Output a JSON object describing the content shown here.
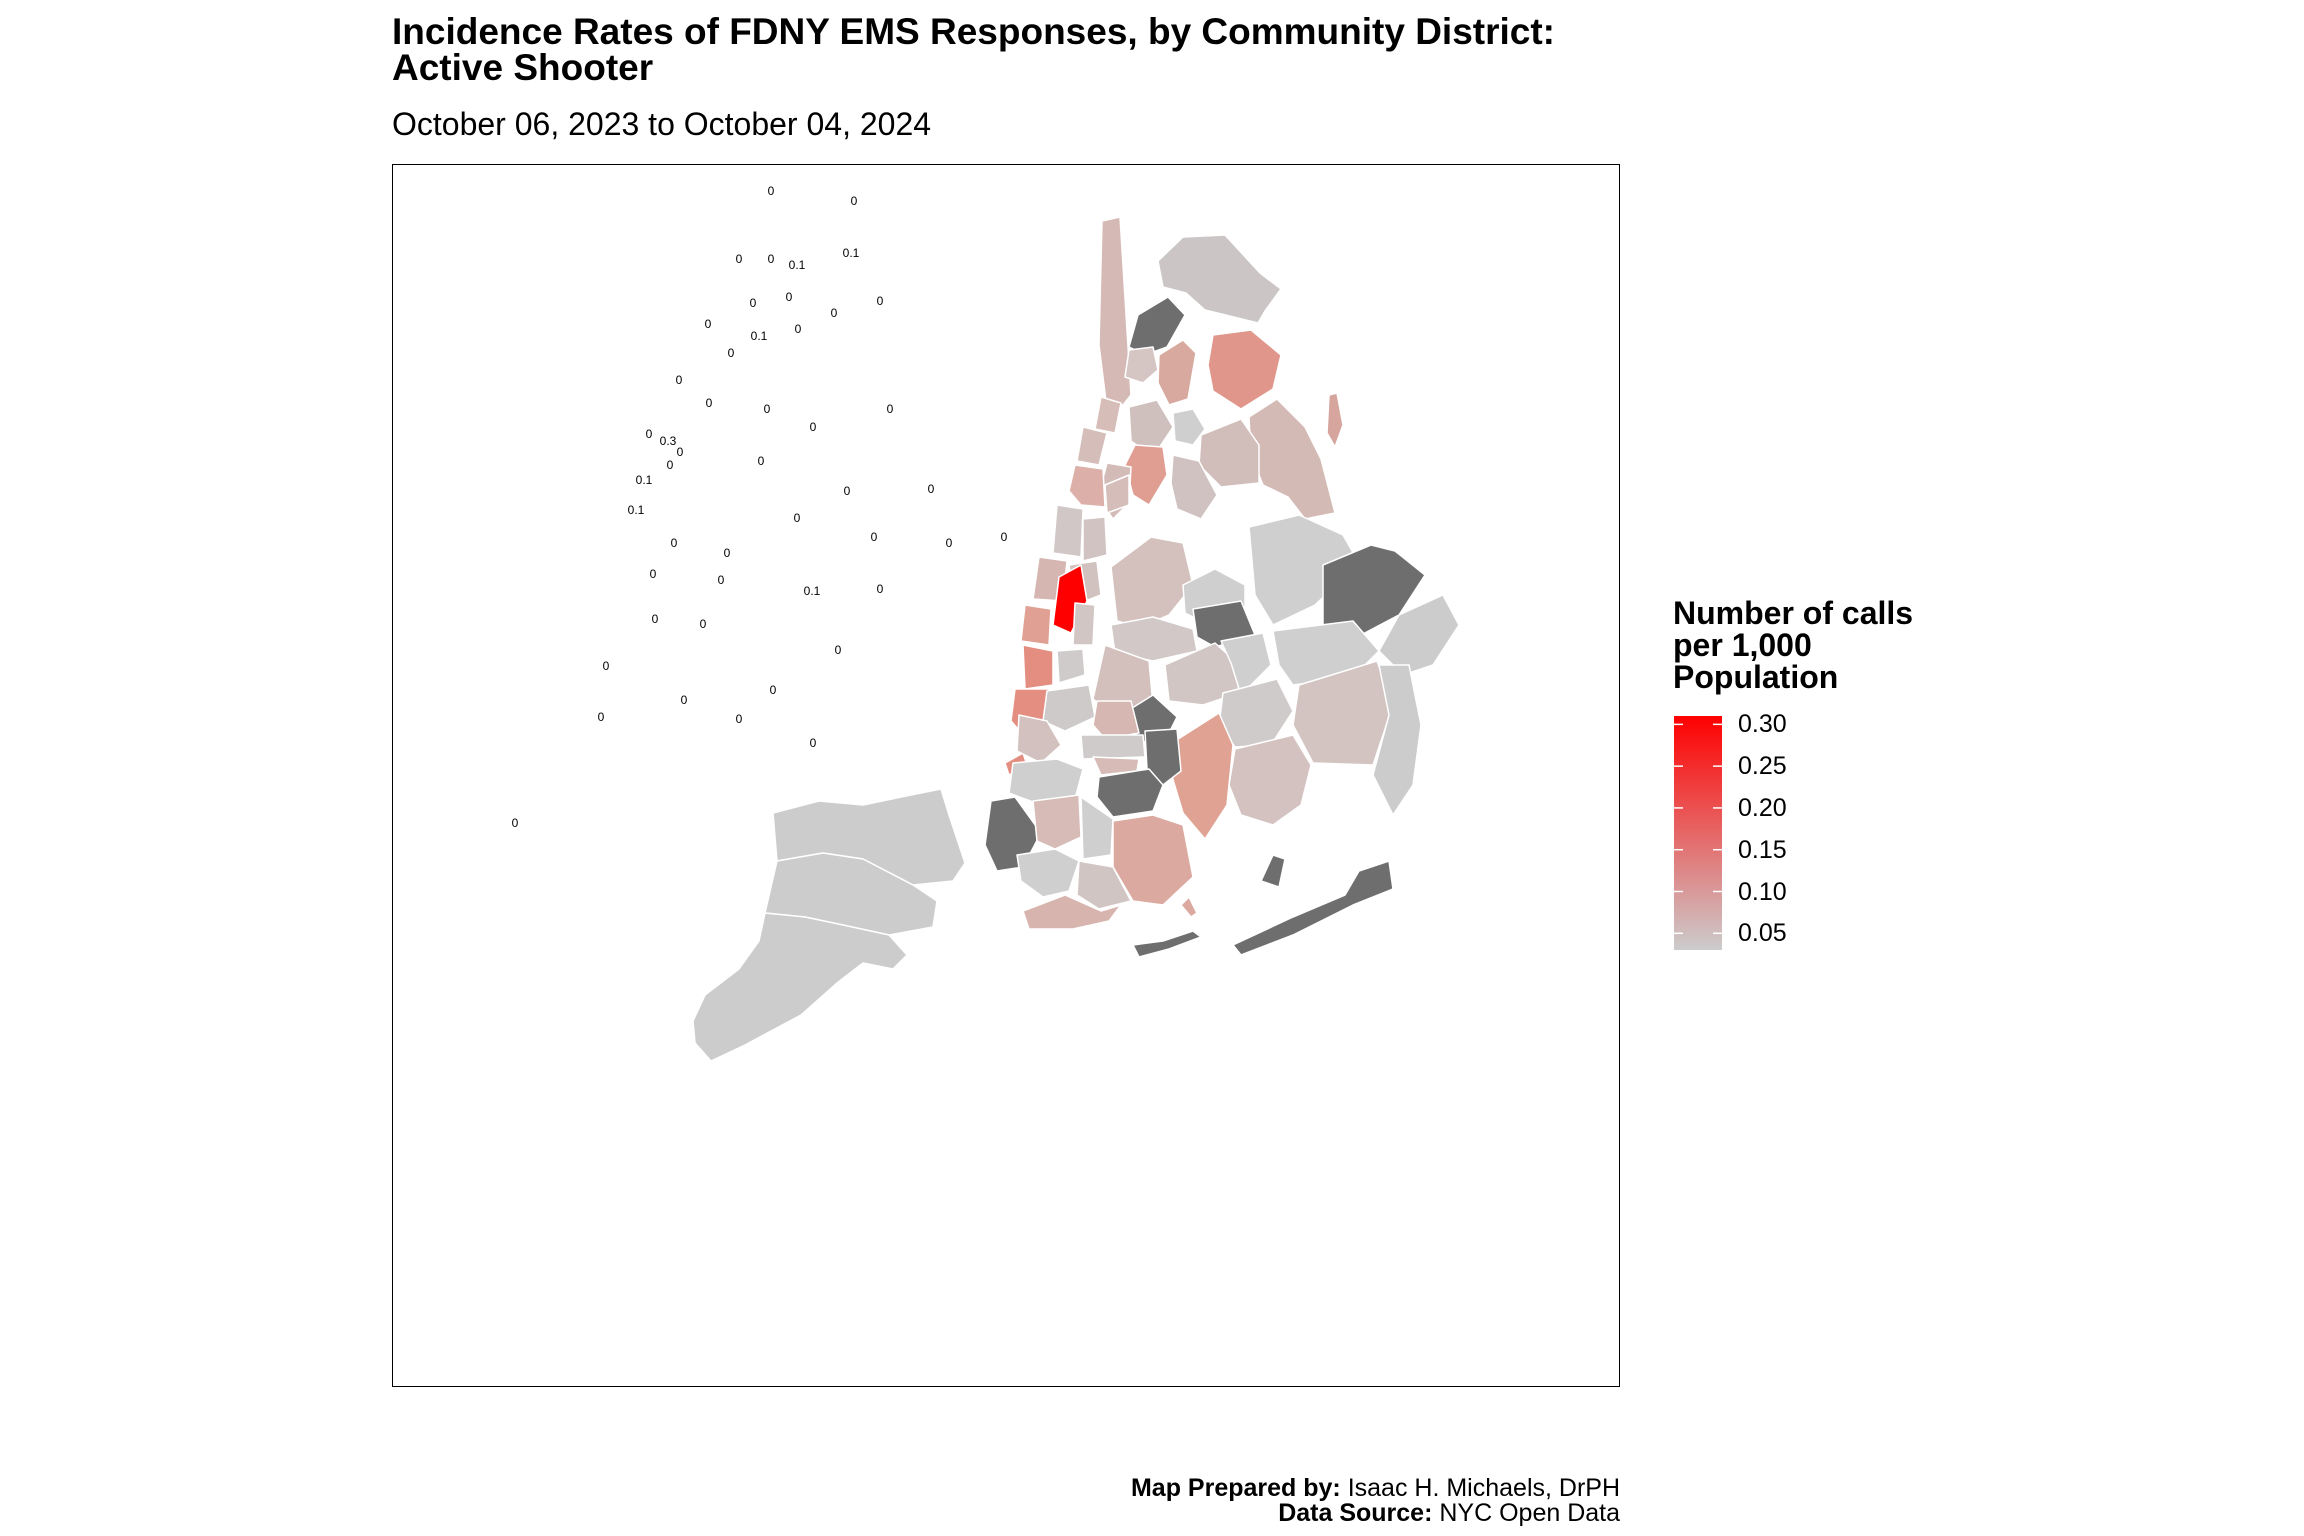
{
  "title_line1": "Incidence Rates of FDNY EMS Responses, by Community District:",
  "title_line2": "Active Shooter",
  "subtitle": "October 06, 2023 to October 04, 2024",
  "legend": {
    "title_line1": "Number of calls",
    "title_line2": "per 1,000",
    "title_line3": "Population",
    "ticks": [
      "0.30",
      "0.25",
      "0.20",
      "0.15",
      "0.10",
      "0.05"
    ],
    "tick_values": [
      0.3,
      0.25,
      0.2,
      0.15,
      0.1,
      0.05
    ],
    "range": [
      0.03,
      0.31
    ],
    "color_low": "#cccccc",
    "color_high": "#ff0000"
  },
  "colors": {
    "missing": "#6e6e6e",
    "border": "#ffffff"
  },
  "credits": {
    "prepared_label": "Map Prepared by:",
    "prepared_value": "Isaac H. Michaels, DrPH",
    "source_label": "Data Source:",
    "source_value": "NYC Open Data"
  },
  "district_labels": [
    "0",
    "0",
    "0",
    "0",
    "0.1",
    "0.1",
    "0",
    "0",
    "0",
    "0",
    "0",
    "0.1",
    "0",
    "0",
    "0",
    "0",
    "0",
    "0",
    "0",
    "0",
    "0.3",
    "0",
    "0.1",
    "0",
    "0.1",
    "0",
    "0",
    "0",
    "0",
    "0",
    "0",
    "0",
    "0",
    "0",
    "0",
    "0.1",
    "0",
    "0",
    "0",
    "0",
    "0",
    "0",
    "0",
    "0",
    "0",
    "0",
    "0",
    "0"
  ]
}
